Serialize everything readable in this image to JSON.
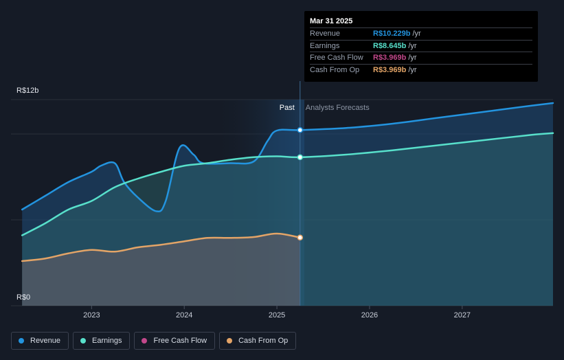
{
  "chart_data": {
    "type": "area",
    "y_axis": {
      "min": 0,
      "max": 12,
      "top_label": "R$12b",
      "bottom_label": "R$0"
    },
    "x_ticks": [
      "2023",
      "2024",
      "2025",
      "2026",
      "2027"
    ],
    "divider": {
      "past_label": "Past",
      "forecast_label": "Analysts Forecasts",
      "x": 2025.25
    },
    "series": [
      {
        "name": "Revenue",
        "color": "#2394df",
        "points": [
          [
            2022.25,
            5.6
          ],
          [
            2022.5,
            6.4
          ],
          [
            2022.75,
            7.2
          ],
          [
            2023.0,
            7.8
          ],
          [
            2023.1,
            8.15
          ],
          [
            2023.25,
            8.3
          ],
          [
            2023.35,
            7.2
          ],
          [
            2023.5,
            6.3
          ],
          [
            2023.7,
            5.5
          ],
          [
            2023.8,
            6.1
          ],
          [
            2023.95,
            9.2
          ],
          [
            2024.1,
            8.8
          ],
          [
            2024.2,
            8.3
          ],
          [
            2024.5,
            8.3
          ],
          [
            2024.75,
            8.4
          ],
          [
            2024.9,
            9.6
          ],
          [
            2025.0,
            10.2
          ],
          [
            2025.25,
            10.229
          ],
          [
            2025.75,
            10.35
          ],
          [
            2026.25,
            10.6
          ],
          [
            2026.75,
            10.95
          ],
          [
            2027.25,
            11.3
          ],
          [
            2027.75,
            11.65
          ],
          [
            2027.98,
            11.8
          ]
        ]
      },
      {
        "name": "Earnings",
        "color": "#58e0cb",
        "points": [
          [
            2022.25,
            4.1
          ],
          [
            2022.5,
            4.8
          ],
          [
            2022.75,
            5.6
          ],
          [
            2023.0,
            6.1
          ],
          [
            2023.25,
            6.9
          ],
          [
            2023.5,
            7.4
          ],
          [
            2023.75,
            7.8
          ],
          [
            2024.0,
            8.15
          ],
          [
            2024.25,
            8.3
          ],
          [
            2024.5,
            8.5
          ],
          [
            2024.75,
            8.65
          ],
          [
            2025.0,
            8.7
          ],
          [
            2025.25,
            8.645
          ],
          [
            2025.75,
            8.8
          ],
          [
            2026.25,
            9.05
          ],
          [
            2026.75,
            9.35
          ],
          [
            2027.25,
            9.65
          ],
          [
            2027.75,
            9.95
          ],
          [
            2027.98,
            10.05
          ]
        ]
      },
      {
        "name": "Free Cash Flow",
        "color": "#c2488b",
        "points": []
      },
      {
        "name": "Cash From Op",
        "color": "#e3a467",
        "points": [
          [
            2022.25,
            2.6
          ],
          [
            2022.5,
            2.75
          ],
          [
            2022.75,
            3.05
          ],
          [
            2023.0,
            3.25
          ],
          [
            2023.25,
            3.15
          ],
          [
            2023.5,
            3.4
          ],
          [
            2023.75,
            3.55
          ],
          [
            2024.0,
            3.75
          ],
          [
            2024.25,
            3.95
          ],
          [
            2024.5,
            3.95
          ],
          [
            2024.75,
            4.0
          ],
          [
            2025.0,
            4.2
          ],
          [
            2025.25,
            3.969
          ]
        ]
      }
    ]
  },
  "tooltip": {
    "date": "Mar 31 2025",
    "rows": [
      {
        "label": "Revenue",
        "value": "R$10.229b",
        "unit": "/yr",
        "color": "#2394df"
      },
      {
        "label": "Earnings",
        "value": "R$8.645b",
        "unit": "/yr",
        "color": "#58e0cb"
      },
      {
        "label": "Free Cash Flow",
        "value": "R$3.969b",
        "unit": "/yr",
        "color": "#c2488b"
      },
      {
        "label": "Cash From Op",
        "value": "R$3.969b",
        "unit": "/yr",
        "color": "#e3a467"
      }
    ]
  },
  "legend": [
    {
      "label": "Revenue",
      "color": "#2394df"
    },
    {
      "label": "Earnings",
      "color": "#58e0cb"
    },
    {
      "label": "Free Cash Flow",
      "color": "#c2488b"
    },
    {
      "label": "Cash From Op",
      "color": "#e3a467"
    }
  ]
}
